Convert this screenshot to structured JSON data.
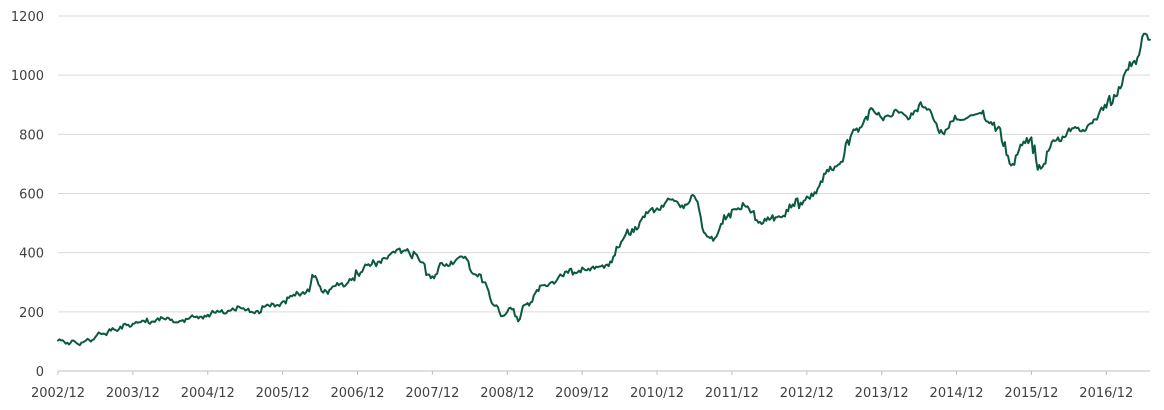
{
  "chart_data": {
    "type": "line",
    "title": "",
    "xlabel": "",
    "ylabel": "",
    "x_ticks": [
      "2002/12",
      "2003/12",
      "2004/12",
      "2005/12",
      "2006/12",
      "2007/12",
      "2008/12",
      "2009/12",
      "2010/12",
      "2011/12",
      "2012/12",
      "2013/12",
      "2014/12",
      "2015/12",
      "2016/12"
    ],
    "y_ticks": [
      0,
      200,
      400,
      600,
      800,
      1000,
      1200
    ],
    "ylim": [
      0,
      1200
    ],
    "xlim": [
      "2002/12",
      "2017/07"
    ],
    "grid": true,
    "legend": "none",
    "colors": {
      "series": "#0b5a40",
      "grid": "#d9d9d9",
      "axis": "#bfbfbf",
      "text": "#404040"
    },
    "series": [
      {
        "x": [
          "2002/12",
          "2003/01",
          "2003/02",
          "2003/03",
          "2003/04",
          "2003/05",
          "2003/06",
          "2003/07",
          "2003/08",
          "2003/09",
          "2003/10",
          "2003/11",
          "2003/12",
          "2004/02",
          "2004/04",
          "2004/06",
          "2004/08",
          "2004/10",
          "2004/12",
          "2005/02",
          "2005/04",
          "2005/06",
          "2005/08",
          "2005/10",
          "2005/12",
          "2006/02",
          "2006/04",
          "2006/05",
          "2006/07",
          "2006/09",
          "2006/12",
          "2007/02",
          "2007/04",
          "2007/06",
          "2007/08",
          "2007/10",
          "2007/12",
          "2008/01",
          "2008/03",
          "2008/05",
          "2008/06",
          "2008/08",
          "2008/09",
          "2008/10",
          "2008/11",
          "2008/12",
          "2009/01",
          "2009/02",
          "2009/03",
          "2009/05",
          "2009/07",
          "2009/09",
          "2009/12",
          "2010/02",
          "2010/04",
          "2010/06",
          "2010/08",
          "2010/10",
          "2010/12",
          "2011/02",
          "2011/04",
          "2011/06",
          "2011/07",
          "2011/08",
          "2011/09",
          "2011/10",
          "2011/12",
          "2012/02",
          "2012/04",
          "2012/05",
          "2012/07",
          "2012/09",
          "2012/12",
          "2013/02",
          "2013/04",
          "2013/06",
          "2013/08",
          "2013/10",
          "2013/12",
          "2014/02",
          "2014/04",
          "2014/06",
          "2014/08",
          "2014/10",
          "2014/12",
          "2015/02",
          "2015/04",
          "2015/06",
          "2015/08",
          "2015/09",
          "2015/11",
          "2015/12",
          "2016/01",
          "2016/02",
          "2016/04",
          "2016/06",
          "2016/08",
          "2016/10",
          "2016/12",
          "2017/02",
          "2017/04",
          "2017/05",
          "2017/06",
          "2017/07"
        ],
        "values": [
          103,
          99,
          95,
          94,
          97,
          105,
          115,
          125,
          132,
          140,
          150,
          155,
          160,
          165,
          178,
          172,
          172,
          182,
          190,
          200,
          212,
          205,
          203,
          218,
          235,
          255,
          276,
          318,
          270,
          290,
          330,
          355,
          380,
          400,
          412,
          370,
          320,
          350,
          370,
          382,
          345,
          300,
          270,
          220,
          185,
          200,
          210,
          175,
          225,
          270,
          300,
          320,
          350,
          345,
          360,
          420,
          480,
          520,
          550,
          580,
          560,
          590,
          520,
          455,
          440,
          480,
          545,
          560,
          510,
          500,
          520,
          540,
          590,
          625,
          680,
          730,
          820,
          880,
          855,
          880,
          860,
          900,
          870,
          800,
          850,
          860,
          870,
          840,
          730,
          700,
          770,
          790,
          680,
          700,
          780,
          820,
          810,
          850,
          890,
          960,
          1030,
          1060,
          1140,
          1120
        ]
      }
    ]
  }
}
